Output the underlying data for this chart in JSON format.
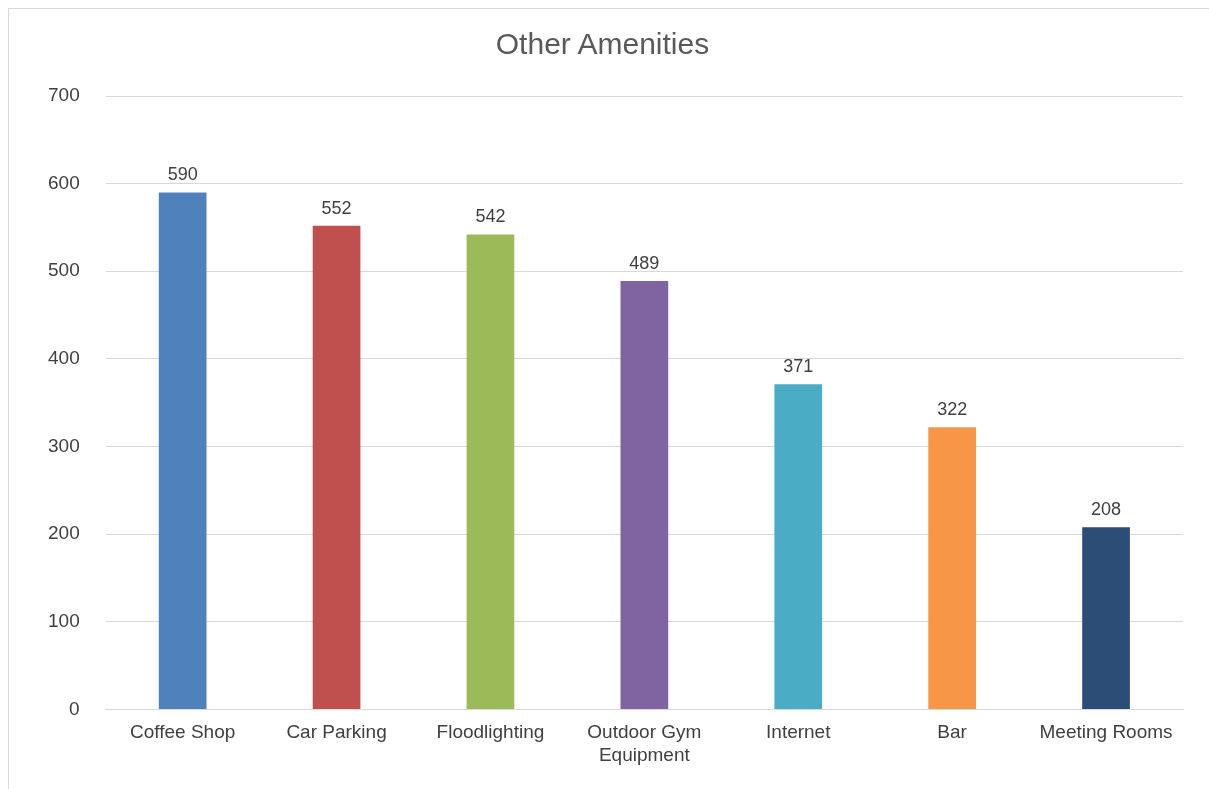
{
  "chart_data": {
    "type": "bar",
    "title": "Other Amenities",
    "categories": [
      "Coffee Shop",
      "Car Parking",
      "Floodlighting",
      "Outdoor Gym Equipment",
      "Internet",
      "Bar",
      "Meeting Rooms"
    ],
    "values": [
      590,
      552,
      542,
      489,
      371,
      322,
      208
    ],
    "colors": [
      "#4f81bd",
      "#c0504d",
      "#9bbb59",
      "#8064a2",
      "#4bacc6",
      "#f79646",
      "#2c4d75"
    ],
    "ylim": [
      0,
      700
    ],
    "yticks": [
      0,
      100,
      200,
      300,
      400,
      500,
      600,
      700
    ],
    "grid": "y",
    "data_labels": true,
    "legend": false
  }
}
